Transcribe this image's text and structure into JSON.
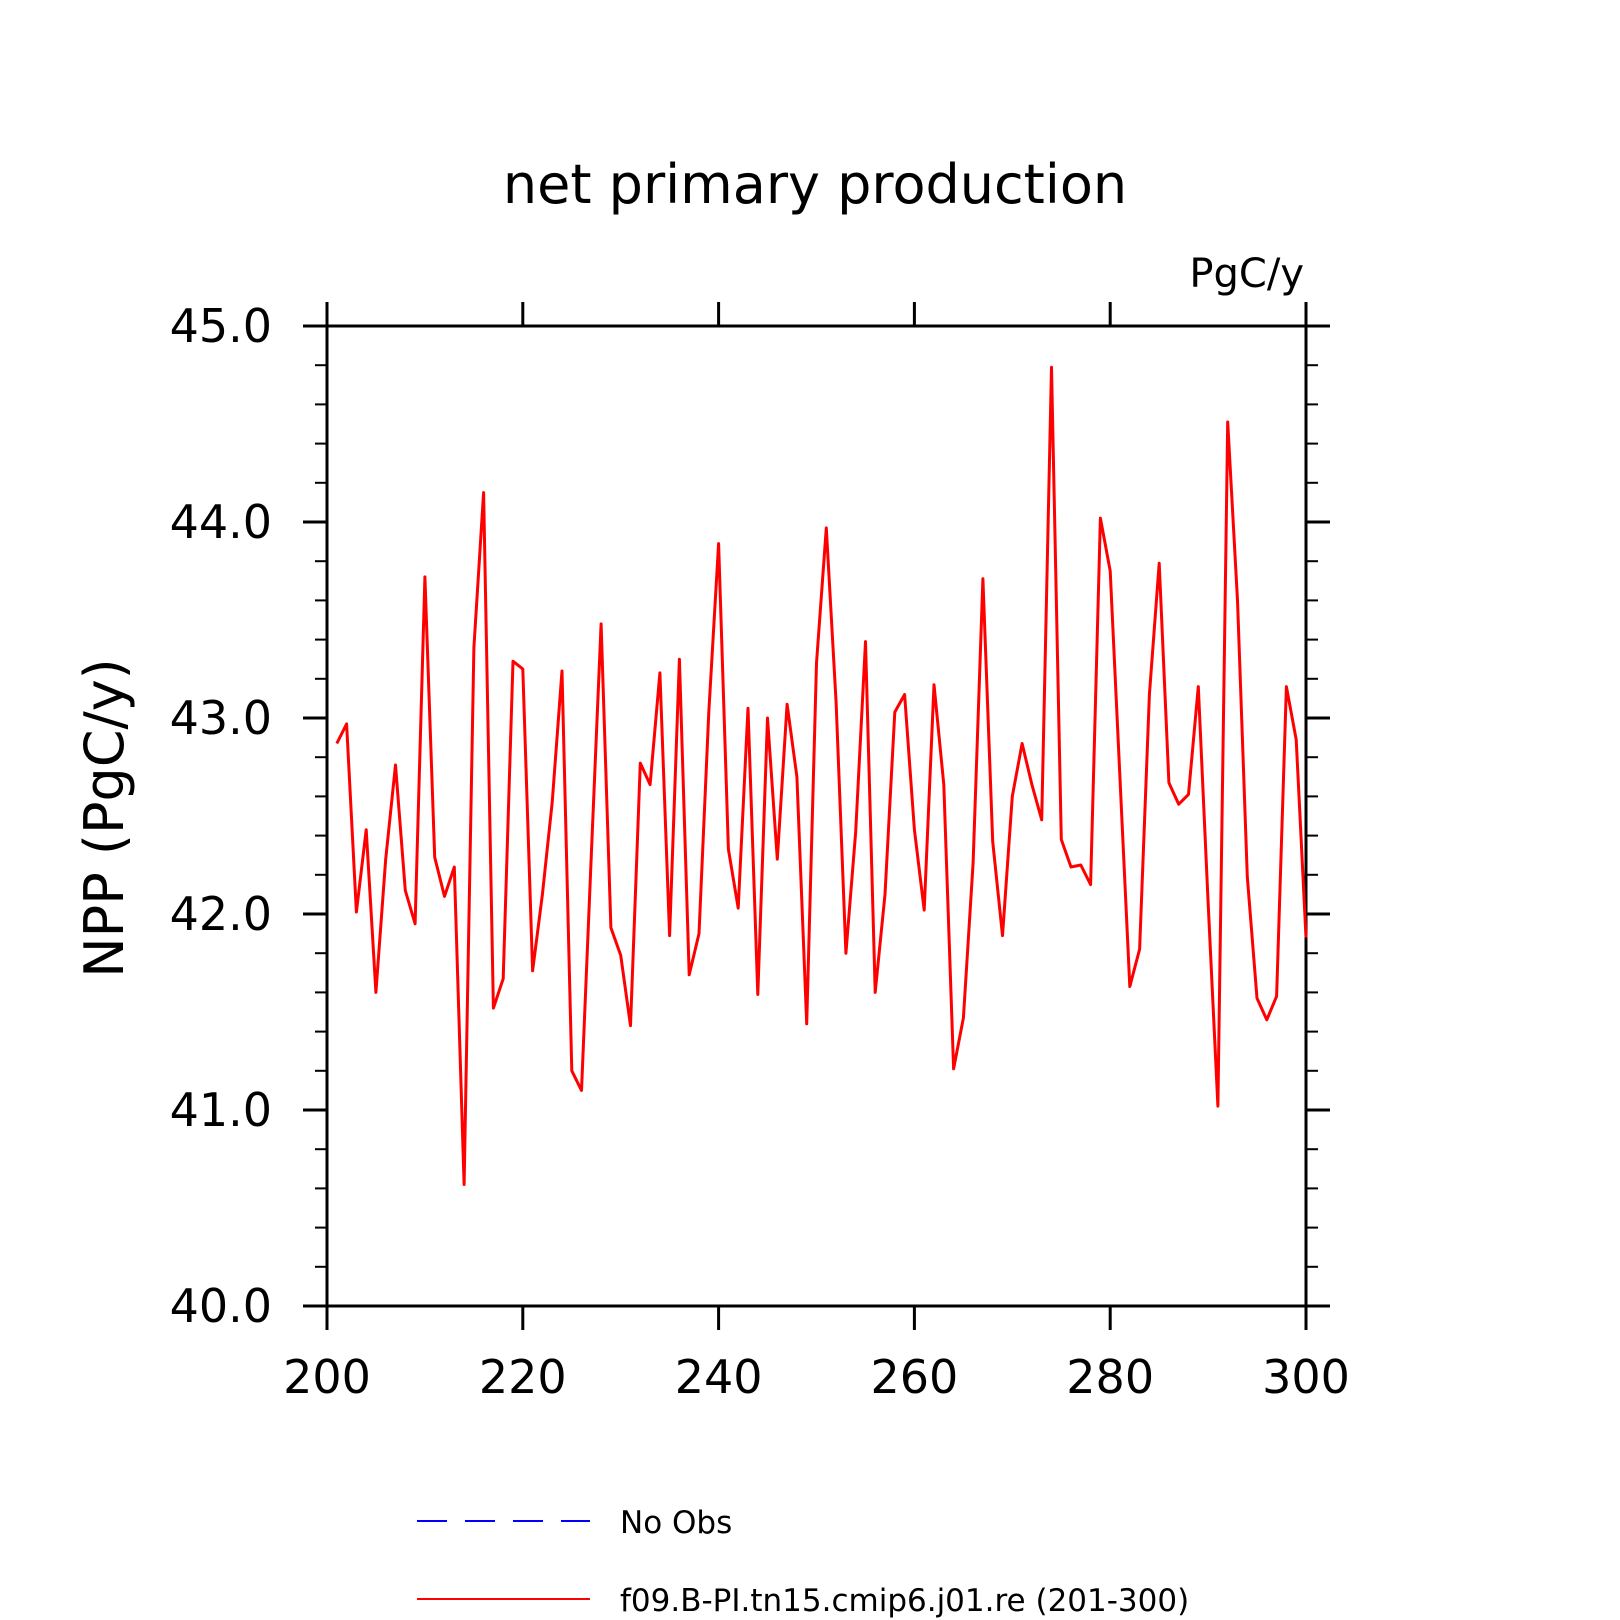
{
  "chart_data": {
    "type": "line",
    "title": "net primary production",
    "units_label": "PgC/y",
    "ylabel": "NPP  (PgC/y)",
    "xlabel": "",
    "xlim": [
      200,
      300
    ],
    "ylim": [
      40.0,
      45.0
    ],
    "x_ticks": [
      "200",
      "220",
      "240",
      "260",
      "280",
      "300"
    ],
    "y_ticks": [
      "40.0",
      "41.0",
      "42.0",
      "43.0",
      "44.0",
      "45.0"
    ],
    "grid": false,
    "legend_position": "bottom",
    "series": [
      {
        "name": "No Obs",
        "color": "#0000ff",
        "style": "dashed",
        "x": [],
        "values": []
      },
      {
        "name": "f09.B-PI.tn15.cmip6.j01.re (201-300)",
        "color": "#ff0000",
        "style": "solid",
        "x": [
          201,
          202,
          203,
          204,
          205,
          206,
          207,
          208,
          209,
          210,
          211,
          212,
          213,
          214,
          215,
          216,
          217,
          218,
          219,
          220,
          221,
          222,
          223,
          224,
          225,
          226,
          227,
          228,
          229,
          230,
          231,
          232,
          233,
          234,
          235,
          236,
          237,
          238,
          239,
          240,
          241,
          242,
          243,
          244,
          245,
          246,
          247,
          248,
          249,
          250,
          251,
          252,
          253,
          254,
          255,
          256,
          257,
          258,
          259,
          260,
          261,
          262,
          263,
          264,
          265,
          266,
          267,
          268,
          269,
          270,
          271,
          272,
          273,
          274,
          275,
          276,
          277,
          278,
          279,
          280,
          281,
          282,
          283,
          284,
          285,
          286,
          287,
          288,
          289,
          290,
          291,
          292,
          293,
          294,
          295,
          296,
          297,
          298,
          299,
          300
        ],
        "values": [
          42.87,
          42.97,
          42.01,
          42.43,
          41.6,
          42.28,
          42.76,
          42.12,
          41.95,
          43.72,
          42.29,
          42.09,
          42.24,
          40.62,
          43.36,
          44.15,
          41.52,
          41.67,
          43.29,
          43.25,
          41.71,
          42.1,
          42.57,
          43.24,
          41.2,
          41.1,
          42.3,
          43.48,
          41.93,
          41.79,
          41.43,
          42.77,
          42.66,
          43.23,
          41.89,
          43.3,
          41.69,
          41.9,
          43.03,
          43.89,
          42.33,
          42.03,
          43.05,
          41.59,
          43.0,
          42.28,
          43.07,
          42.7,
          41.44,
          43.28,
          43.97,
          43.08,
          41.8,
          42.42,
          43.39,
          41.6,
          42.1,
          43.03,
          43.12,
          42.43,
          42.02,
          43.17,
          42.66,
          41.21,
          41.47,
          42.26,
          43.71,
          42.37,
          41.89,
          42.6,
          42.87,
          42.66,
          42.48,
          44.79,
          42.38,
          42.24,
          42.25,
          42.15,
          44.02,
          43.75,
          42.69,
          41.63,
          41.82,
          43.12,
          43.79,
          42.67,
          42.56,
          42.61,
          43.16,
          42.06,
          41.02,
          44.51,
          43.6,
          42.19,
          41.57,
          41.46,
          41.58,
          43.16,
          42.89,
          41.88
        ]
      }
    ]
  }
}
